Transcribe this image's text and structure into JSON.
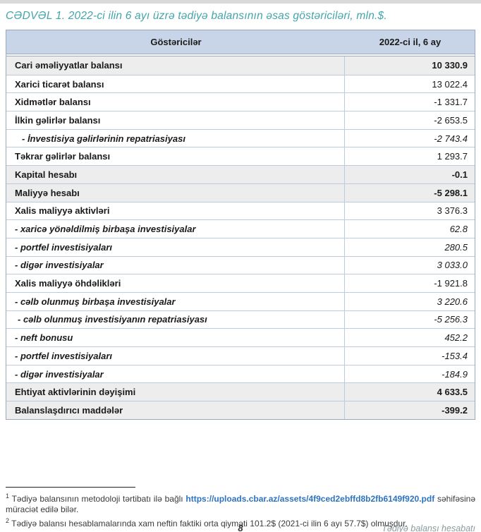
{
  "page": {
    "title": "CƏDVƏL 1. 2022-ci ilin 6 ayı üzrə tədiyə balansının əsas göstəriciləri, mln.$.",
    "page_number": "8",
    "footer_right": "Tədiyə balansı hesabatı"
  },
  "table": {
    "header": {
      "indicators": "Göstəricilər",
      "period": "2022-ci il, 6 ay"
    },
    "rows": [
      {
        "label": "Cari əməliyyatlar balansı",
        "value": "10 330.9",
        "style": "section"
      },
      {
        "label": "Xarici ticarət balansı",
        "value": "13 022.4",
        "style": "item"
      },
      {
        "label": "Xidmətlər balansı",
        "value": "-1 331.7",
        "style": "item"
      },
      {
        "label": "İlkin gəlirlər balansı",
        "value": "-2 653.5",
        "style": "item"
      },
      {
        "label": "- İnvestisiya gəlirlərinin repatriasiyası",
        "value": "-2 743.4",
        "style": "sub2"
      },
      {
        "label": "Təkrar gəlirlər balansı",
        "value": "1 293.7",
        "style": "item"
      },
      {
        "label": "Kapital hesabı",
        "value": "-0.1",
        "style": "section"
      },
      {
        "label": "Maliyyə hesabı",
        "value": "-5 298.1",
        "style": "section"
      },
      {
        "label": "Xalis maliyyə aktivləri",
        "value": "3 376.3",
        "style": "item"
      },
      {
        "label": "- xaricə yönəldilmiş birbaşa investisiyalar",
        "value": "62.8",
        "style": "sub"
      },
      {
        "label": "- portfel investisiyaları",
        "value": "280.5",
        "style": "sub"
      },
      {
        "label": "- digər investisiyalar",
        "value": "3 033.0",
        "style": "sub"
      },
      {
        "label": "Xalis maliyyə öhdəlikləri",
        "value": "-1 921.8",
        "style": "item"
      },
      {
        "label": "- cəlb olunmuş birbaşa investisiyalar",
        "value": "3 220.6",
        "style": "sub"
      },
      {
        "label": "- cəlb olunmuş investisiyanın repatriasiyası",
        "value": "-5 256.3",
        "style": "sub1"
      },
      {
        "label": "- neft bonusu",
        "value": "452.2",
        "style": "sub"
      },
      {
        "label": "- portfel investisiyaları",
        "value": "-153.4",
        "style": "sub"
      },
      {
        "label": "- digər investisiyalar",
        "value": "-184.9",
        "style": "sub"
      },
      {
        "label": "Ehtiyat aktivlərinin dəyişimi",
        "value": "4 633.5",
        "style": "section"
      },
      {
        "label": "Balanslaşdırıcı maddələr",
        "value": "-399.2",
        "style": "section"
      }
    ]
  },
  "footnotes": {
    "note1": {
      "marker": "1",
      "text_before": " Tədiyə balansının metodoloji tərtibatı ilə bağlı ",
      "link_text": "https://uploads.cbar.az/assets/4f9ced2ebffd8b2fb6149f920.pdf",
      "text_after": " səhifəsinə müraciət edilə bilər."
    },
    "note2": {
      "marker": "2",
      "text": " Tədiyə balansı hesablamalarında xam neftin faktiki orta qiyməti 101.2$ (2021-ci ilin 6 ayı 57.7$) olmuşdur."
    }
  },
  "colors": {
    "accent_teal": "#43A5AB",
    "header_bg": "#C8D4E7",
    "shaded_row_bg": "#EDEDED",
    "table_border": "#9AA8C2",
    "row_line": "#BCCBE2",
    "link_blue": "#2E73C2",
    "footer_gray": "#8B9C9C"
  }
}
